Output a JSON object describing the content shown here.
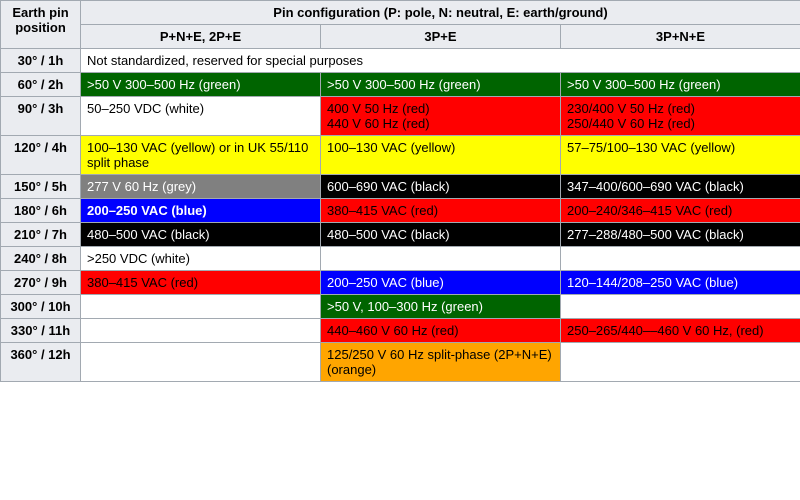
{
  "palette": {
    "green": {
      "bg": "#006400",
      "fg": "#ffffff"
    },
    "white": {
      "bg": "#ffffff",
      "fg": "#000000"
    },
    "red": {
      "bg": "#ff0000",
      "fg": "#000000"
    },
    "yellow": {
      "bg": "#ffff00",
      "fg": "#000000"
    },
    "grey": {
      "bg": "#808080",
      "fg": "#ffffff"
    },
    "black": {
      "bg": "#000000",
      "fg": "#ffffff"
    },
    "blue": {
      "bg": "#0000ff",
      "fg": "#ffffff"
    },
    "orange": {
      "bg": "#ffa500",
      "fg": "#000000"
    },
    "none": {
      "bg": "",
      "fg": ""
    }
  },
  "header": {
    "earth_pin_position": "Earth pin position",
    "pin_configuration": "Pin configuration (P: pole, N: neutral, E: earth/ground)",
    "col1": "P+N+E, 2P+E",
    "col2": "3P+E",
    "col3": "3P+N+E"
  },
  "rows": [
    {
      "pos": "30° / 1h",
      "cells": [
        {
          "text": "Not standardized, reserved for special purposes",
          "color": "white",
          "span": 3
        }
      ]
    },
    {
      "pos": "60° / 2h",
      "cells": [
        {
          "text": ">50 V 300–500 Hz (green)",
          "color": "green"
        },
        {
          "text": ">50 V 300–500 Hz (green)",
          "color": "green"
        },
        {
          "text": ">50 V 300–500 Hz (green)",
          "color": "green"
        }
      ]
    },
    {
      "pos": "90° / 3h",
      "cells": [
        {
          "text": "50–250 VDC (white)",
          "color": "white"
        },
        {
          "text": "400 V 50 Hz (red)\n440 V 60 Hz (red)",
          "color": "red"
        },
        {
          "text": "230/400 V 50 Hz (red)\n250/440 V 60 Hz (red)",
          "color": "red"
        }
      ]
    },
    {
      "pos": "120° / 4h",
      "cells": [
        {
          "text": "100–130 VAC (yellow) or in UK 55/110 split phase",
          "color": "yellow"
        },
        {
          "text": "100–130 VAC (yellow)",
          "color": "yellow"
        },
        {
          "text": "57–75/100–130 VAC (yellow)",
          "color": "yellow"
        }
      ]
    },
    {
      "pos": "150° / 5h",
      "cells": [
        {
          "text": "277 V 60 Hz (grey)",
          "color": "grey"
        },
        {
          "text": "600–690 VAC (black)",
          "color": "black"
        },
        {
          "text": "347–400/600–690 VAC (black)",
          "color": "black"
        }
      ]
    },
    {
      "pos": "180° / 6h",
      "cells": [
        {
          "text": "200–250 VAC (blue)",
          "color": "blue",
          "bold": true
        },
        {
          "text": "380–415 VAC (red)",
          "color": "red"
        },
        {
          "text": "200–240/346–415 VAC (red)",
          "color": "red"
        }
      ]
    },
    {
      "pos": "210° / 7h",
      "cells": [
        {
          "text": "480–500 VAC (black)",
          "color": "black"
        },
        {
          "text": "480–500 VAC (black)",
          "color": "black"
        },
        {
          "text": "277–288/480–500 VAC (black)",
          "color": "black"
        }
      ]
    },
    {
      "pos": "240° / 8h",
      "cells": [
        {
          "text": ">250 VDC (white)",
          "color": "white"
        },
        {
          "text": "",
          "color": "none"
        },
        {
          "text": "",
          "color": "none"
        }
      ]
    },
    {
      "pos": "270° / 9h",
      "cells": [
        {
          "text": "380–415 VAC (red)",
          "color": "red"
        },
        {
          "text": "200–250 VAC (blue)",
          "color": "blue"
        },
        {
          "text": "120–144/208–250 VAC (blue)",
          "color": "blue"
        }
      ]
    },
    {
      "pos": "300° / 10h",
      "cells": [
        {
          "text": "",
          "color": "none"
        },
        {
          "text": ">50 V, 100–300 Hz (green)",
          "color": "green"
        },
        {
          "text": "",
          "color": "none"
        }
      ]
    },
    {
      "pos": "330° / 11h",
      "cells": [
        {
          "text": "",
          "color": "none"
        },
        {
          "text": "440–460 V 60 Hz (red)",
          "color": "red"
        },
        {
          "text": "250–265/440––460 V 60 Hz, (red)",
          "color": "red"
        }
      ]
    },
    {
      "pos": "360° / 12h",
      "cells": [
        {
          "text": "",
          "color": "none"
        },
        {
          "text": "125/250 V 60 Hz split-phase (2P+N+E) (orange)",
          "color": "orange"
        },
        {
          "text": "",
          "color": "none"
        }
      ]
    }
  ]
}
